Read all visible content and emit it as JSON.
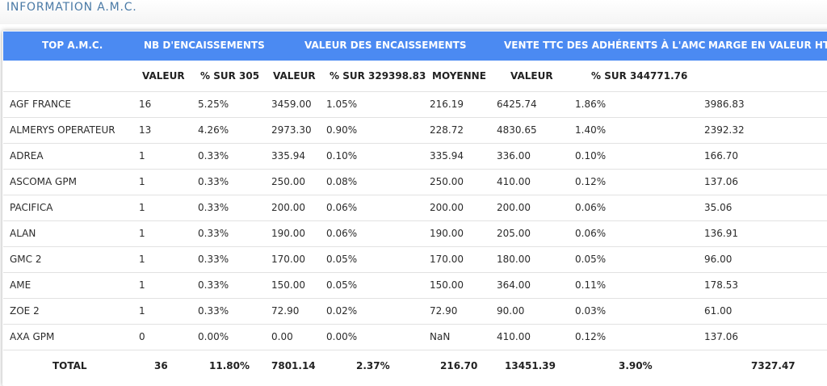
{
  "section_title": "INFORMATION A.M.C.",
  "headers": {
    "top_amc": "TOP A.M.C.",
    "nb_encaissements": "NB D'ENCAISSEMENTS",
    "valeur_encaissements": "VALEUR DES ENCAISSEMENTS",
    "vente_ttc": "VENTE TTC DES ADHÉRENTS À L'AMC",
    "marge": "MARGE EN VALEUR HT"
  },
  "subheaders": {
    "nb_valeur": "VALEUR",
    "nb_pct": "% SUR 305",
    "enc_valeur": "VALEUR",
    "enc_pct": "% SUR 329398.83",
    "enc_moyenne": "MOYENNE",
    "vente_valeur": "VALEUR",
    "vente_pct": "% SUR 344771.76"
  },
  "rows": [
    {
      "name": "AGF FRANCE",
      "nb": "16",
      "nb_pct": "5.25%",
      "enc": "3459.00",
      "enc_pct": "1.05%",
      "moy": "216.19",
      "vente": "6425.74",
      "vente_pct": "1.86%",
      "marge": "3986.83"
    },
    {
      "name": "ALMERYS OPERATEUR",
      "nb": "13",
      "nb_pct": "4.26%",
      "enc": "2973.30",
      "enc_pct": "0.90%",
      "moy": "228.72",
      "vente": "4830.65",
      "vente_pct": "1.40%",
      "marge": "2392.32"
    },
    {
      "name": "ADREA",
      "nb": "1",
      "nb_pct": "0.33%",
      "enc": "335.94",
      "enc_pct": "0.10%",
      "moy": "335.94",
      "vente": "336.00",
      "vente_pct": "0.10%",
      "marge": "166.70"
    },
    {
      "name": "ASCOMA GPM",
      "nb": "1",
      "nb_pct": "0.33%",
      "enc": "250.00",
      "enc_pct": "0.08%",
      "moy": "250.00",
      "vente": "410.00",
      "vente_pct": "0.12%",
      "marge": "137.06"
    },
    {
      "name": "PACIFICA",
      "nb": "1",
      "nb_pct": "0.33%",
      "enc": "200.00",
      "enc_pct": "0.06%",
      "moy": "200.00",
      "vente": "200.00",
      "vente_pct": "0.06%",
      "marge": "35.06"
    },
    {
      "name": "ALAN",
      "nb": "1",
      "nb_pct": "0.33%",
      "enc": "190.00",
      "enc_pct": "0.06%",
      "moy": "190.00",
      "vente": "205.00",
      "vente_pct": "0.06%",
      "marge": "136.91"
    },
    {
      "name": "GMC 2",
      "nb": "1",
      "nb_pct": "0.33%",
      "enc": "170.00",
      "enc_pct": "0.05%",
      "moy": "170.00",
      "vente": "180.00",
      "vente_pct": "0.05%",
      "marge": "96.00"
    },
    {
      "name": "AME",
      "nb": "1",
      "nb_pct": "0.33%",
      "enc": "150.00",
      "enc_pct": "0.05%",
      "moy": "150.00",
      "vente": "364.00",
      "vente_pct": "0.11%",
      "marge": "178.53"
    },
    {
      "name": "ZOE 2",
      "nb": "1",
      "nb_pct": "0.33%",
      "enc": "72.90",
      "enc_pct": "0.02%",
      "moy": "72.90",
      "vente": "90.00",
      "vente_pct": "0.03%",
      "marge": "61.00"
    },
    {
      "name": "AXA GPM",
      "nb": "0",
      "nb_pct": "0.00%",
      "enc": "0.00",
      "enc_pct": "0.00%",
      "moy": "NaN",
      "vente": "410.00",
      "vente_pct": "0.12%",
      "marge": "137.06"
    }
  ],
  "total": {
    "label": "TOTAL",
    "nb": "36",
    "nb_pct": "11.80%",
    "enc": "7801.14",
    "enc_pct": "2.37%",
    "moy": "216.70",
    "vente": "13451.39",
    "vente_pct": "3.90%",
    "marge": "7327.47"
  },
  "colors": {
    "header_bg": "#4b8af2",
    "title": "#4a7aa6"
  }
}
